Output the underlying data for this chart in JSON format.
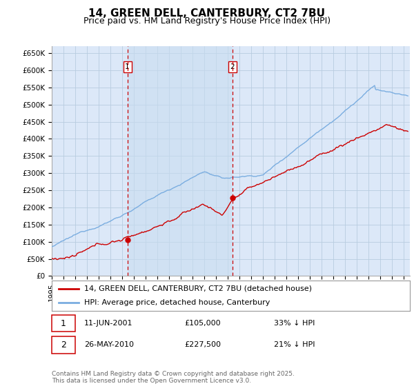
{
  "title": "14, GREEN DELL, CANTERBURY, CT2 7BU",
  "subtitle": "Price paid vs. HM Land Registry's House Price Index (HPI)",
  "ylabel_ticks": [
    "£0",
    "£50K",
    "£100K",
    "£150K",
    "£200K",
    "£250K",
    "£300K",
    "£350K",
    "£400K",
    "£450K",
    "£500K",
    "£550K",
    "£600K",
    "£650K"
  ],
  "ytick_vals": [
    0,
    50000,
    100000,
    150000,
    200000,
    250000,
    300000,
    350000,
    400000,
    450000,
    500000,
    550000,
    600000,
    650000
  ],
  "ylim": [
    0,
    670000
  ],
  "xlim_start": 1995.0,
  "xlim_end": 2025.5,
  "plot_bg_color": "#dce8f8",
  "grid_color": "#b8cce0",
  "line1_color": "#cc0000",
  "line2_color": "#7aade0",
  "vline_color": "#cc0000",
  "shade_color": "#c8ddf0",
  "purchase1_date": 2001.44,
  "purchase1_price": 105000,
  "purchase2_date": 2010.4,
  "purchase2_price": 227500,
  "legend_line1": "14, GREEN DELL, CANTERBURY, CT2 7BU (detached house)",
  "legend_line2": "HPI: Average price, detached house, Canterbury",
  "footer": "Contains HM Land Registry data © Crown copyright and database right 2025.\nThis data is licensed under the Open Government Licence v3.0.",
  "title_fontsize": 11,
  "subtitle_fontsize": 9,
  "tick_fontsize": 7.5,
  "legend_fontsize": 8,
  "annotation_fontsize": 8,
  "footer_fontsize": 6.5
}
